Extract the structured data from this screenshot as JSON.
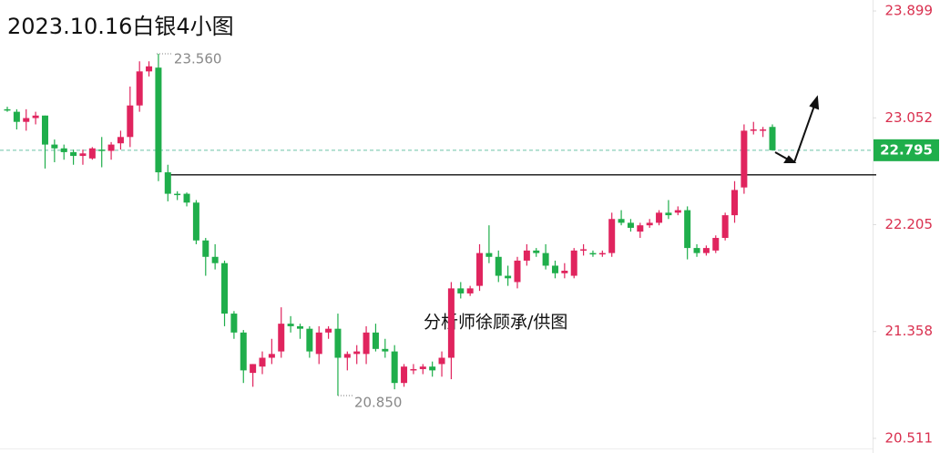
{
  "chart_data": {
    "type": "candlestick",
    "title": "2023.10.16白银4小图",
    "watermark": "分析师徐顾承/供图",
    "open": [
      23.12,
      23.1,
      23.02,
      23.05,
      23.07,
      22.84,
      22.81,
      22.78,
      22.75,
      22.73,
      22.8,
      22.79,
      22.85,
      22.9,
      23.15,
      23.42,
      23.45,
      22.62,
      22.45,
      22.45,
      22.38,
      22.08,
      21.95,
      21.9,
      21.5,
      21.35,
      21.03,
      21.08,
      21.15,
      21.2,
      21.42,
      21.4,
      21.38,
      21.18,
      21.35,
      21.38,
      21.15,
      21.18,
      21.18,
      21.35,
      21.22,
      21.2,
      20.95,
      21.05,
      21.06,
      21.08,
      21.1,
      21.15,
      21.7,
      21.66,
      21.72,
      21.98,
      21.95,
      21.8,
      21.75,
      21.92,
      22.0,
      21.98,
      21.88,
      21.82,
      21.8,
      22.0,
      21.98,
      21.97,
      21.98,
      22.25,
      22.22,
      22.15,
      22.2,
      22.22,
      22.3,
      22.3,
      22.32,
      22.02,
      21.98,
      22.0,
      22.1,
      22.28,
      22.5,
      22.95,
      22.95,
      22.98
    ],
    "high": [
      23.14,
      23.12,
      23.12,
      23.1,
      23.07,
      22.88,
      22.84,
      22.8,
      22.8,
      22.82,
      22.9,
      22.86,
      22.95,
      23.3,
      23.5,
      23.5,
      23.56,
      22.68,
      22.47,
      22.46,
      22.4,
      22.1,
      22.05,
      21.92,
      21.52,
      21.37,
      21.1,
      21.2,
      21.3,
      21.55,
      21.48,
      21.42,
      21.4,
      21.4,
      21.4,
      21.5,
      21.2,
      21.25,
      21.4,
      21.42,
      21.3,
      21.25,
      21.1,
      21.1,
      21.1,
      21.12,
      21.2,
      21.75,
      21.75,
      21.72,
      22.05,
      22.2,
      22.0,
      21.88,
      21.95,
      22.05,
      22.02,
      22.05,
      21.92,
      21.9,
      22.02,
      22.05,
      22.0,
      22.0,
      22.3,
      22.32,
      22.25,
      22.22,
      22.25,
      22.32,
      22.4,
      22.35,
      22.35,
      22.05,
      22.04,
      22.12,
      22.3,
      22.55,
      23.0,
      23.02,
      22.98,
      23.0
    ],
    "low": [
      23.1,
      22.96,
      22.95,
      23.0,
      22.65,
      22.7,
      22.72,
      22.68,
      22.68,
      22.72,
      22.66,
      22.72,
      22.8,
      22.82,
      23.1,
      23.38,
      22.55,
      22.39,
      22.4,
      22.35,
      22.05,
      21.8,
      21.85,
      21.4,
      21.3,
      20.95,
      20.92,
      21.02,
      21.1,
      21.15,
      21.35,
      21.3,
      21.15,
      21.1,
      21.3,
      20.85,
      21.05,
      21.1,
      21.1,
      21.2,
      21.15,
      20.9,
      20.92,
      21.02,
      21.02,
      21.0,
      21.0,
      20.98,
      21.62,
      21.64,
      21.68,
      21.9,
      21.75,
      21.72,
      21.7,
      21.88,
      21.95,
      21.85,
      21.78,
      21.78,
      21.78,
      21.96,
      21.95,
      21.95,
      21.95,
      22.2,
      22.15,
      22.1,
      22.18,
      22.2,
      22.25,
      22.28,
      21.93,
      21.95,
      21.96,
      21.98,
      22.08,
      22.22,
      22.45,
      22.92,
      22.9,
      22.8
    ],
    "close": [
      23.11,
      23.02,
      23.05,
      23.07,
      22.84,
      22.81,
      22.78,
      22.75,
      22.77,
      22.81,
      22.79,
      22.84,
      22.9,
      23.15,
      23.42,
      23.46,
      22.62,
      22.45,
      22.44,
      22.38,
      22.08,
      21.95,
      21.9,
      21.5,
      21.35,
      21.05,
      21.1,
      21.15,
      21.18,
      21.42,
      21.4,
      21.38,
      21.2,
      21.35,
      21.38,
      21.15,
      21.18,
      21.2,
      21.35,
      21.22,
      21.2,
      20.95,
      21.08,
      21.06,
      21.08,
      21.05,
      21.15,
      21.7,
      21.66,
      21.7,
      21.98,
      21.95,
      21.8,
      21.78,
      21.92,
      22.0,
      21.98,
      21.88,
      21.82,
      21.84,
      22.0,
      22.01,
      21.97,
      21.98,
      22.25,
      22.22,
      22.18,
      22.2,
      22.22,
      22.3,
      22.28,
      22.32,
      22.02,
      21.98,
      22.02,
      22.1,
      22.28,
      22.48,
      22.95,
      22.96,
      22.96,
      22.795
    ],
    "max_label": "23.560",
    "min_label": "20.850",
    "up_color": "#e0245e",
    "down_color": "#1fae4b",
    "last_price": 22.795,
    "support_level": 22.6,
    "ylim": [
      20.395,
      23.986
    ],
    "yticks": [
      23.899,
      23.052,
      22.205,
      21.358,
      20.511
    ]
  }
}
